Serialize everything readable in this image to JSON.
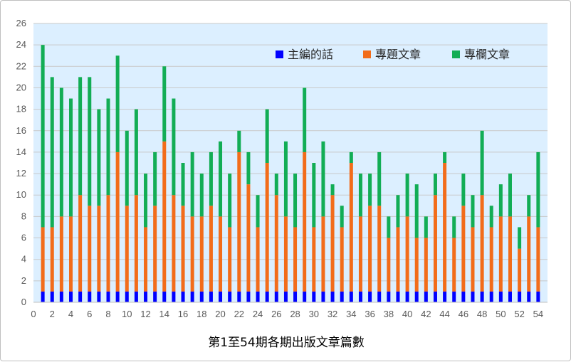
{
  "chart_data": {
    "type": "bar",
    "stacked": true,
    "title": "第1至54期各期出版文章篇數",
    "xlabel": "",
    "ylabel": "",
    "ylim": [
      0,
      26
    ],
    "yticks": [
      0,
      2,
      4,
      6,
      8,
      10,
      12,
      14,
      16,
      18,
      20,
      22,
      24,
      26
    ],
    "xlim": [
      0,
      55
    ],
    "xticks": [
      0,
      2,
      4,
      6,
      8,
      10,
      12,
      14,
      16,
      18,
      20,
      22,
      24,
      26,
      28,
      30,
      32,
      34,
      36,
      38,
      40,
      42,
      44,
      46,
      48,
      50,
      52,
      54
    ],
    "grid": true,
    "legend_position": "top-right",
    "plot_background": "#dcefff",
    "categories": [
      1,
      2,
      3,
      4,
      5,
      6,
      7,
      8,
      9,
      10,
      11,
      12,
      13,
      14,
      15,
      16,
      17,
      18,
      19,
      20,
      21,
      22,
      23,
      24,
      25,
      26,
      27,
      28,
      29,
      30,
      31,
      32,
      33,
      34,
      35,
      36,
      37,
      38,
      39,
      40,
      41,
      42,
      43,
      44,
      45,
      46,
      47,
      48,
      49,
      50,
      51,
      52,
      53,
      54
    ],
    "series": [
      {
        "name": "主編的話",
        "color": "#0000ff",
        "values": [
          1,
          1,
          1,
          1,
          1,
          1,
          1,
          1,
          1,
          1,
          1,
          1,
          1,
          1,
          1,
          1,
          1,
          1,
          1,
          1,
          1,
          1,
          1,
          1,
          1,
          1,
          1,
          1,
          1,
          1,
          1,
          1,
          1,
          1,
          1,
          1,
          1,
          1,
          1,
          1,
          1,
          1,
          1,
          1,
          1,
          1,
          1,
          1,
          1,
          1,
          1,
          1,
          1,
          1
        ]
      },
      {
        "name": "專題文章",
        "color": "#f26c1a",
        "values": [
          6,
          6,
          7,
          7,
          9,
          8,
          8,
          9,
          13,
          8,
          9,
          6,
          8,
          14,
          9,
          8,
          7,
          7,
          8,
          7,
          6,
          13,
          10,
          6,
          12,
          9,
          7,
          6,
          13,
          6,
          7,
          9,
          6,
          12,
          7,
          8,
          8,
          5,
          6,
          7,
          5,
          5,
          9,
          12,
          5,
          8,
          6,
          9,
          6,
          7,
          7,
          4,
          7,
          6
        ]
      },
      {
        "name": "專欄文章",
        "color": "#12ad55",
        "values": [
          17,
          14,
          12,
          11,
          11,
          12,
          9,
          9,
          9,
          7,
          8,
          5,
          5,
          7,
          9,
          4,
          6,
          4,
          5,
          7,
          5,
          2,
          3,
          3,
          5,
          2,
          7,
          5,
          6,
          6,
          7,
          1,
          2,
          1,
          4,
          3,
          5,
          2,
          3,
          4,
          5,
          2,
          2,
          1,
          2,
          3,
          3,
          6,
          2,
          3,
          4,
          2,
          2,
          7
        ]
      }
    ]
  }
}
